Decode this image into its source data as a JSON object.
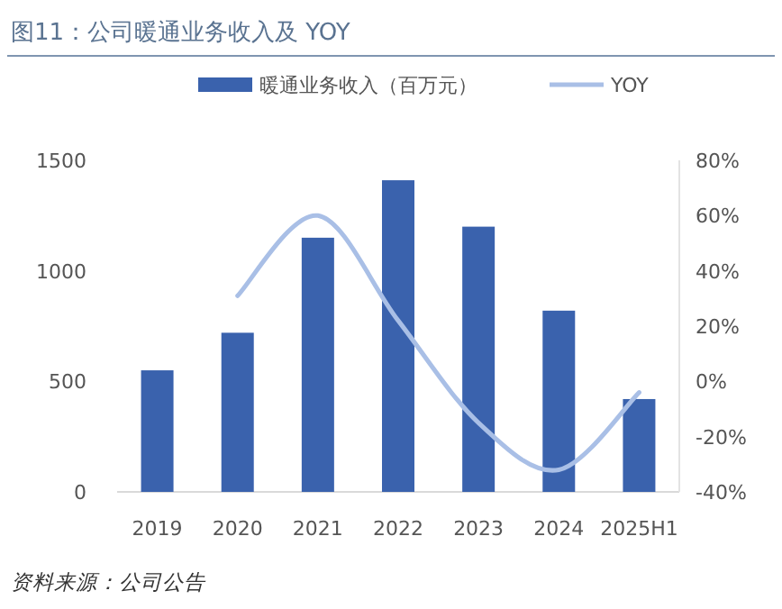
{
  "chart_data": {
    "type": "bar",
    "title": "图11：公司暖通业务收入及 YOY",
    "categories": [
      "2019",
      "2020",
      "2021",
      "2022",
      "2023",
      "2024",
      "2025H1"
    ],
    "series": [
      {
        "name": "暖通业务收入（百万元）",
        "color": "#3a62ad",
        "values": [
          550,
          720,
          1150,
          1410,
          1200,
          820,
          420
        ]
      },
      {
        "name": "YOY",
        "type": "line",
        "axis": "y2",
        "color": "#a9bfe6",
        "values": [
          null,
          31,
          60,
          22,
          -15,
          -32,
          -4
        ]
      }
    ],
    "ylim": [
      0,
      1500
    ],
    "yticks": [
      0,
      500,
      1000,
      1500
    ],
    "y2lim": [
      -40,
      80
    ],
    "y2ticks": [
      {
        "value": -40,
        "label": "-40%"
      },
      {
        "value": -20,
        "label": "-20%"
      },
      {
        "value": 0,
        "label": "0%"
      },
      {
        "value": 20,
        "label": "20%"
      },
      {
        "value": 40,
        "label": "40%"
      },
      {
        "value": 60,
        "label": "60%"
      },
      {
        "value": 80,
        "label": "80%"
      }
    ],
    "legend": "top",
    "marker": "none",
    "grid": false,
    "annotations": [
      "资料来源：公司公告"
    ]
  }
}
